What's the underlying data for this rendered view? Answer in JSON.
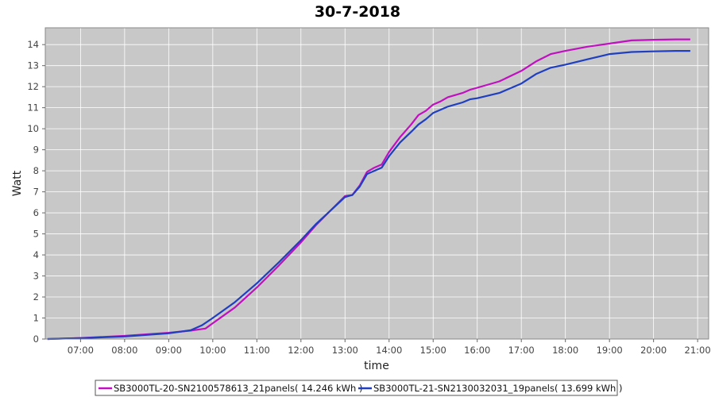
{
  "colors": {
    "plot_background": "#c8c8c8",
    "grid": "#ffffff",
    "series_1": "#c010c0",
    "series_2": "#1f3fc0"
  },
  "chart_data": {
    "type": "line",
    "title": "30-7-2018",
    "xlabel": "time",
    "ylabel": "Watt",
    "grid": true,
    "legend_position": "bottom",
    "x_ticks": [
      "07:00",
      "08:00",
      "09:00",
      "10:00",
      "11:00",
      "12:00",
      "13:00",
      "14:00",
      "15:00",
      "16:00",
      "17:00",
      "18:00",
      "19:00",
      "20:00",
      "21:00"
    ],
    "y_ticks": [
      "0",
      "1",
      "2",
      "3",
      "4",
      "5",
      "6",
      "7",
      "8",
      "9",
      "10",
      "11",
      "12",
      "13",
      "14"
    ],
    "xlim": [
      "06:12",
      "21:15"
    ],
    "ylim": [
      0,
      14.8
    ],
    "series": [
      {
        "name": "SB3000TL-20-SN2100578613_21panels( 14.246 kWh )",
        "color": "#c010c0",
        "points": [
          [
            "06:15",
            0.0
          ],
          [
            "07:00",
            0.05
          ],
          [
            "08:00",
            0.15
          ],
          [
            "09:00",
            0.3
          ],
          [
            "09:30",
            0.4
          ],
          [
            "09:50",
            0.5
          ],
          [
            "10:00",
            0.75
          ],
          [
            "10:30",
            1.5
          ],
          [
            "11:00",
            2.45
          ],
          [
            "11:30",
            3.5
          ],
          [
            "12:00",
            4.6
          ],
          [
            "12:20",
            5.4
          ],
          [
            "12:40",
            6.1
          ],
          [
            "13:00",
            6.8
          ],
          [
            "13:10",
            6.85
          ],
          [
            "13:20",
            7.3
          ],
          [
            "13:30",
            7.95
          ],
          [
            "13:40",
            8.15
          ],
          [
            "13:50",
            8.3
          ],
          [
            "14:00",
            8.9
          ],
          [
            "14:15",
            9.6
          ],
          [
            "14:30",
            10.2
          ],
          [
            "14:40",
            10.65
          ],
          [
            "14:50",
            10.85
          ],
          [
            "15:00",
            11.15
          ],
          [
            "15:10",
            11.3
          ],
          [
            "15:20",
            11.5
          ],
          [
            "15:40",
            11.7
          ],
          [
            "15:50",
            11.85
          ],
          [
            "16:00",
            11.95
          ],
          [
            "16:30",
            12.25
          ],
          [
            "17:00",
            12.75
          ],
          [
            "17:20",
            13.2
          ],
          [
            "17:40",
            13.55
          ],
          [
            "18:00",
            13.7
          ],
          [
            "18:30",
            13.9
          ],
          [
            "19:00",
            14.05
          ],
          [
            "19:30",
            14.2
          ],
          [
            "20:00",
            14.23
          ],
          [
            "20:30",
            14.25
          ],
          [
            "20:50",
            14.25
          ]
        ]
      },
      {
        "name": "SB3000TL-21-SN2130032031_19panels( 13.699 kWh )",
        "color": "#1f3fc0",
        "points": [
          [
            "06:15",
            0.0
          ],
          [
            "07:00",
            0.04
          ],
          [
            "08:00",
            0.12
          ],
          [
            "09:00",
            0.27
          ],
          [
            "09:30",
            0.42
          ],
          [
            "09:45",
            0.65
          ],
          [
            "10:00",
            1.0
          ],
          [
            "10:30",
            1.75
          ],
          [
            "11:00",
            2.65
          ],
          [
            "11:30",
            3.65
          ],
          [
            "12:00",
            4.7
          ],
          [
            "12:20",
            5.45
          ],
          [
            "12:40",
            6.1
          ],
          [
            "13:00",
            6.75
          ],
          [
            "13:10",
            6.85
          ],
          [
            "13:20",
            7.25
          ],
          [
            "13:30",
            7.85
          ],
          [
            "13:40",
            8.0
          ],
          [
            "13:50",
            8.15
          ],
          [
            "14:00",
            8.7
          ],
          [
            "14:15",
            9.35
          ],
          [
            "14:30",
            9.85
          ],
          [
            "14:40",
            10.2
          ],
          [
            "14:50",
            10.45
          ],
          [
            "15:00",
            10.75
          ],
          [
            "15:10",
            10.9
          ],
          [
            "15:20",
            11.05
          ],
          [
            "15:40",
            11.25
          ],
          [
            "15:50",
            11.4
          ],
          [
            "16:00",
            11.45
          ],
          [
            "16:30",
            11.7
          ],
          [
            "17:00",
            12.15
          ],
          [
            "17:20",
            12.6
          ],
          [
            "17:40",
            12.9
          ],
          [
            "18:00",
            13.05
          ],
          [
            "18:30",
            13.3
          ],
          [
            "19:00",
            13.55
          ],
          [
            "19:30",
            13.65
          ],
          [
            "20:00",
            13.68
          ],
          [
            "20:30",
            13.7
          ],
          [
            "20:50",
            13.7
          ]
        ]
      }
    ]
  }
}
